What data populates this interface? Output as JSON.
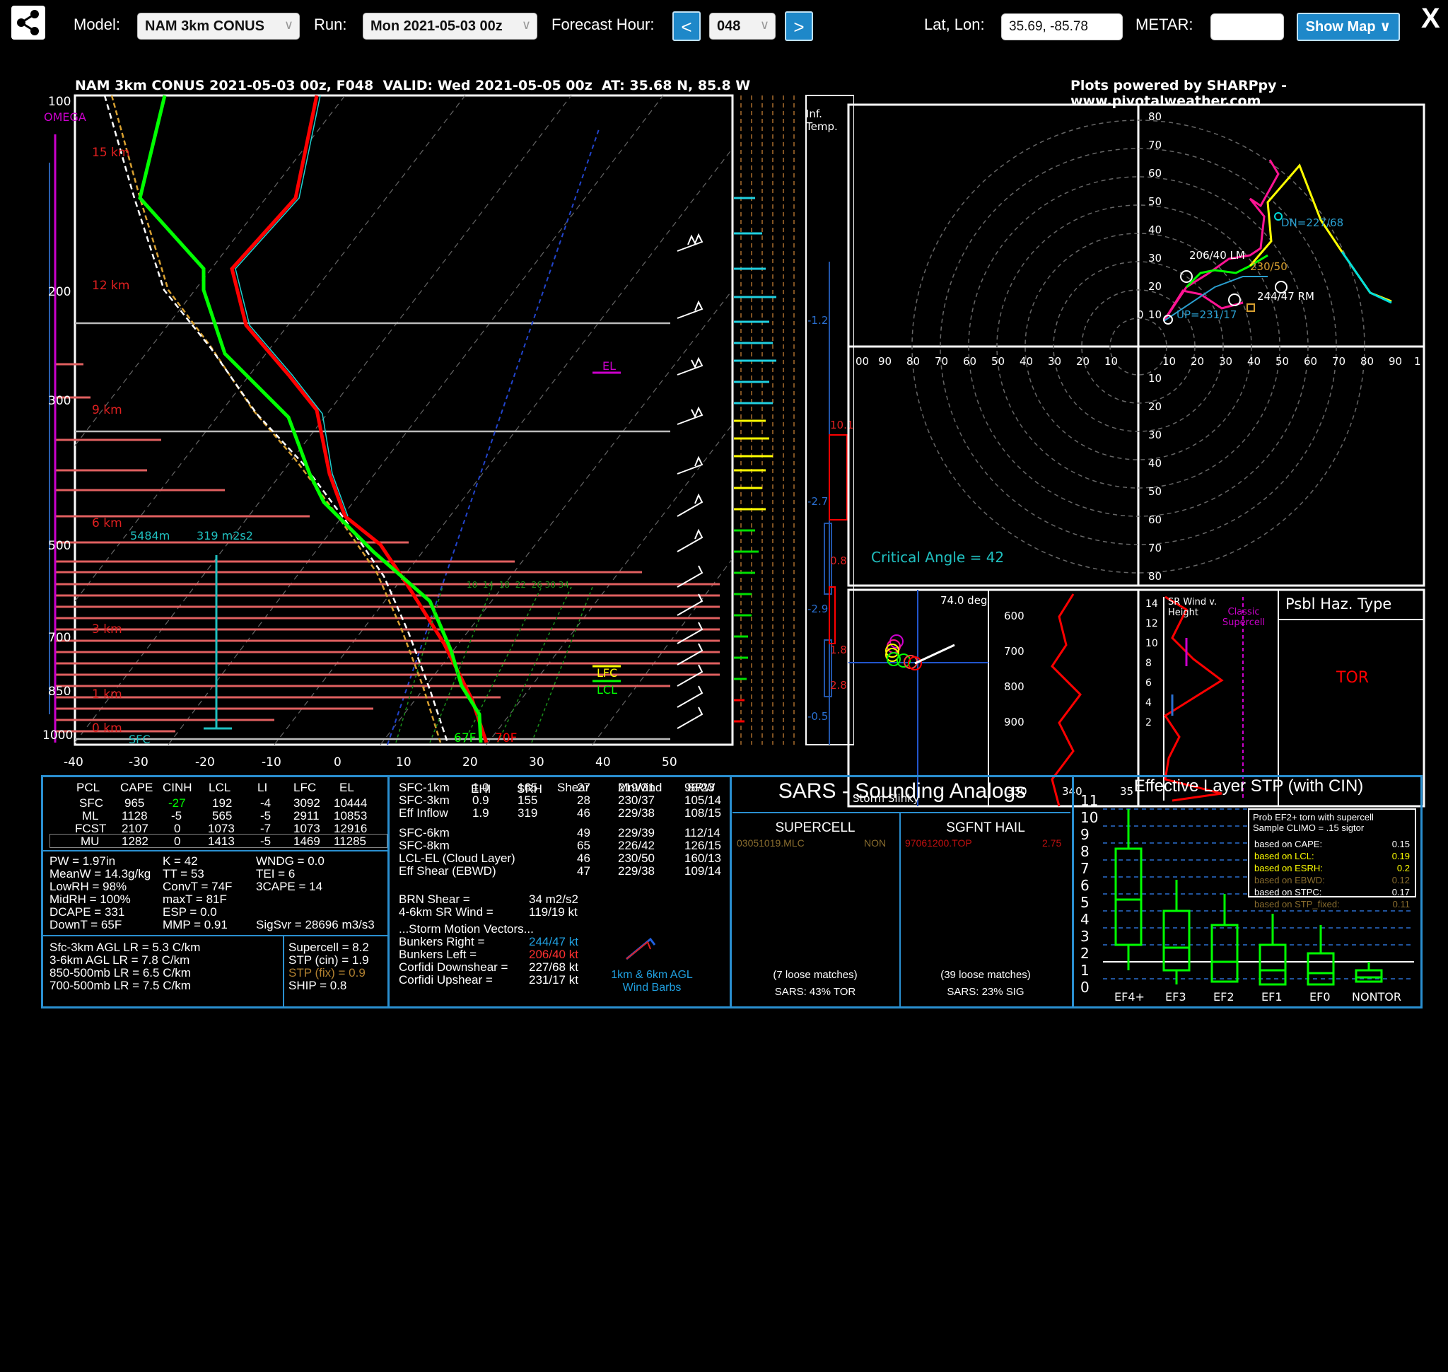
{
  "toolbar": {
    "model_label": "Model:",
    "model_value": "NAM 3km CONUS",
    "run_label": "Run:",
    "run_value": "Mon 2021-05-03 00z",
    "fhour_label": "Forecast Hour:",
    "fhour_value": "048",
    "prev_label": "<",
    "next_label": ">",
    "latlon_label": "Lat, Lon:",
    "latlon_value": "35.69, -85.78",
    "metar_label": "METAR:",
    "metar_value": "",
    "show_map_label": "Show Map ∨",
    "close_label": "X"
  },
  "header": {
    "title": "NAM 3km CONUS 2021-05-03 00z, F048  VALID: Wed 2021-05-05 00z  AT: 35.68 N, 85.8 W",
    "credit": "Plots powered by SHARPpy - www.pivotalweather.com"
  },
  "skewt": {
    "omega_label": "OMEGA",
    "pressure_labels": [
      "100",
      "200",
      "300",
      "500",
      "700",
      "850",
      "1000"
    ],
    "height_labels": [
      "15 km",
      "12 km",
      "9 km",
      "6 km",
      "3 km",
      "1 km",
      "0 km"
    ],
    "temp_ticks": [
      "-40",
      "-30",
      "-20",
      "-10",
      "0",
      "10",
      "20",
      "30",
      "40",
      "50"
    ],
    "el_label": "EL",
    "lfc_label": "LFC",
    "lcl_label": "LCL",
    "sfc_label": "SFC",
    "sfc_td": "67F",
    "sfc_t": "70F",
    "eff_inflow_top": "5484m",
    "eff_srh": "319 m2s2",
    "mixing_ratio_labels": "10  14  18  22  26 30 34",
    "inf_temp_label": "Inf. Temp.",
    "inf_values": [
      "-1.2",
      "10.1",
      "-2.7",
      "0.8",
      "-2.9",
      "1.8",
      "2.8",
      "-0.5"
    ]
  },
  "hodograph": {
    "rings_y": [
      "80",
      "70",
      "60",
      "50",
      "40",
      "30",
      "20",
      "10"
    ],
    "rings_x_left": [
      "00",
      "90",
      "80",
      "70",
      "60",
      "50",
      "40",
      "30",
      "20",
      "10"
    ],
    "rings_x_right": [
      "10",
      "20",
      "30",
      "40",
      "50",
      "60",
      "70",
      "80",
      "90",
      "1"
    ],
    "rings_y_lower": [
      "10",
      "20",
      "30",
      "40",
      "50",
      "60",
      "70",
      "80"
    ],
    "dn_label": "DN=227/68",
    "lm_label": "206/40 LM",
    "mean_label": "230/50",
    "rm_label": "244/47 RM",
    "up_label": "UP=231/17",
    "critical_angle": "Critical Angle = 42",
    "origin_label": "0"
  },
  "insets": {
    "slinky_deg": "74.0 deg",
    "slinky_label": "Storm Slinky",
    "theta_p": [
      "600",
      "700",
      "800",
      "900"
    ],
    "theta_x": [
      "330",
      "340",
      "35"
    ],
    "srw_title": "SR Wind v. Height",
    "srw_ticks": [
      "14",
      "12",
      "10",
      "8",
      "6",
      "4",
      "2"
    ],
    "classic_supercell": "Classic Supercell",
    "haz_title": "Psbl Haz. Type",
    "haz_value": "TOR"
  },
  "parcel_table": {
    "headers": [
      "PCL",
      "CAPE",
      "CINH",
      "LCL",
      "LI",
      "LFC",
      "EL"
    ],
    "rows": [
      [
        "SFC",
        "965",
        "-27",
        "192",
        "-4",
        "3092",
        "10444"
      ],
      [
        "ML",
        "1128",
        "-5",
        "565",
        "-5",
        "2911",
        "10853"
      ],
      [
        "FCST",
        "2107",
        "0",
        "1073",
        "-7",
        "1073",
        "12916"
      ],
      [
        "MU",
        "1282",
        "0",
        "1413",
        "-5",
        "1469",
        "11285"
      ]
    ]
  },
  "thermo_indices": {
    "col1": [
      "PW = 1.97in",
      "MeanW = 14.3g/kg",
      "LowRH = 98%",
      "MidRH = 100%",
      "DCAPE = 331",
      "DownT = 65F"
    ],
    "col2": [
      "K = 42",
      "TT = 53",
      "ConvT = 74F",
      "maxT = 81F",
      "ESP = 0.0",
      "MMP = 0.91"
    ],
    "col3": [
      "WNDG = 0.0",
      "TEI = 6",
      "3CAPE = 14",
      "",
      "",
      "SigSvr = 28696 m3/s3"
    ]
  },
  "lapse_rates": [
    "Sfc-3km AGL LR = 5.3 C/km",
    "3-6km AGL LR = 7.8 C/km",
    "850-500mb LR = 6.5 C/km",
    "700-500mb LR = 7.5 C/km"
  ],
  "composites": [
    "Supercell = 8.2",
    "STP (cin) = 1.9",
    "STP (fix) = 0.9",
    "SHIP = 0.8"
  ],
  "kinematics": {
    "headers": [
      "EHI",
      "SRH",
      "Shear",
      "MnWind",
      "SRW"
    ],
    "rows": [
      [
        "SFC-1km",
        "1.0",
        "165",
        "27",
        "219/31",
        "98/23"
      ],
      [
        "SFC-3km",
        "0.9",
        "155",
        "28",
        "230/37",
        "105/14"
      ],
      [
        "Eff Inflow",
        "1.9",
        "319",
        "46",
        "229/38",
        "108/15"
      ],
      [
        "SFC-6km",
        "",
        "",
        "49",
        "229/39",
        "112/14"
      ],
      [
        "SFC-8km",
        "",
        "",
        "65",
        "226/42",
        "126/15"
      ],
      [
        "LCL-EL (Cloud Layer)",
        "",
        "",
        "46",
        "230/50",
        "160/13"
      ],
      [
        "Eff Shear (EBWD)",
        "",
        "",
        "47",
        "229/38",
        "109/14"
      ]
    ],
    "brn_label": "BRN Shear =",
    "brn_value": "34 m2/s2",
    "srw46_label": "4-6km SR Wind =",
    "srw46_value": "119/19 kt",
    "storm_motion_title": "...Storm Motion Vectors...",
    "bunkers_right_label": "Bunkers Right =",
    "bunkers_right_value": "244/47 kt",
    "bunkers_left_label": "Bunkers Left =",
    "bunkers_left_value": "206/40 kt",
    "corfidi_down_label": "Corfidi Downshear =",
    "corfidi_down_value": "227/68 kt",
    "corfidi_up_label": "Corfidi Upshear =",
    "corfidi_up_value": "231/17 kt",
    "barb_label": "1km & 6km AGL Wind Barbs"
  },
  "sars": {
    "title": "SARS - Sounding Analogs",
    "supercell_title": "SUPERCELL",
    "supercell_match": "03051019.MLC",
    "supercell_type": "NON",
    "hail_title": "SGFNT HAIL",
    "hail_match": "97061200.TOP",
    "hail_size": "2.75",
    "supercell_loose": "(7 loose matches)",
    "supercell_pct": "SARS: 43% TOR",
    "hail_loose": "(39 loose matches)",
    "hail_pct": "SARS: 23% SIG"
  },
  "stp_panel": {
    "title": "Effective Layer STP (with CIN)",
    "y_ticks": [
      "11",
      "10",
      "9",
      "8",
      "7",
      "6",
      "5",
      "4",
      "3",
      "2",
      "1",
      "0"
    ],
    "categories": [
      "EF4+",
      "EF3",
      "EF2",
      "EF1",
      "EF0",
      "NONTOR"
    ],
    "legend_title": "Prob EF2+ torn with supercell",
    "legend_sub": "Sample CLIMO = .15 sigtor",
    "legend_rows": [
      {
        "label": "based on CAPE:",
        "value": "0.15",
        "color": "#ffffff"
      },
      {
        "label": "based on LCL:",
        "value": "0.19",
        "color": "#ffff00"
      },
      {
        "label": "based on ESRH:",
        "value": "0.2",
        "color": "#ffff00"
      },
      {
        "label": "based on EBWD:",
        "value": "0.12",
        "color": "#8a6d2e"
      },
      {
        "label": "based on STPC:",
        "value": "0.17",
        "color": "#ffffff"
      },
      {
        "label": "based on STP_fixed:",
        "value": "0.11",
        "color": "#8a6d2e"
      }
    ]
  },
  "colors": {
    "accent": "#1e88c9",
    "temp": "#ff0000",
    "dewpoint": "#00ff00",
    "cyan": "#00cccc",
    "magenta": "#cc00cc",
    "yellow": "#ffff00"
  }
}
